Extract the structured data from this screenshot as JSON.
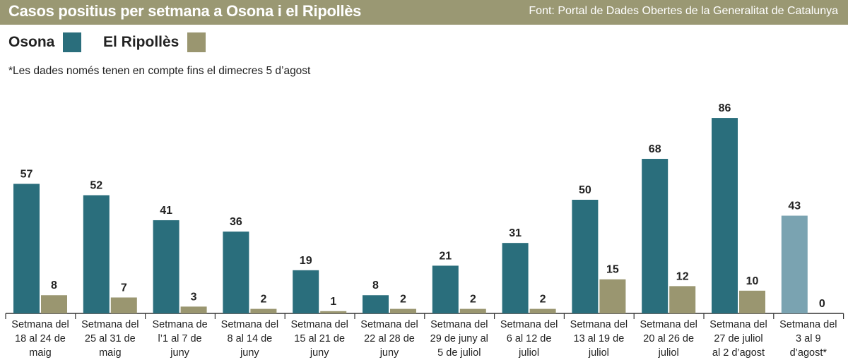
{
  "header": {
    "title": "Casos positius per setmana a Osona i el Ripollès",
    "source": "Font: Portal de Dades Obertes de la Generalitat de Catalunya"
  },
  "note": "*Les dades només tenen en compte fins el dimecres 5 d’agost",
  "colors": {
    "header_bg": "#9a9873",
    "osona": "#2a6e7c",
    "osona_partial": "#7aa3b1",
    "ripolles": "#9a9670",
    "axis": "#333333",
    "text": "#222222"
  },
  "chart_data": {
    "type": "bar",
    "title": "Casos positius per setmana a Osona i el Ripollès",
    "xlabel": "",
    "ylabel": "",
    "ylim": [
      0,
      90
    ],
    "grid": false,
    "legend_position": "top-left",
    "categories": [
      "Setmana del 18 al 24 de maig",
      "Setmana del 25 al 31 de maig",
      "Setmana de l’1 al 7 de juny",
      "Setmana del 8 al 14 de juny",
      "Setmana del 15 al 21 de juny",
      "Setmana del 22 al 28 de juny",
      "Setmana del 29 de juny al 5 de juliol",
      "Setmana del 6 al 12 de juliol",
      "Setmana del 13 al 19 de juliol",
      "Setmana del 20 al 26 de juliol",
      "Setmana del 27 de juliol al 2 d’agost",
      "Setmana del 3 al 9 d’agost*"
    ],
    "category_lines": [
      [
        "Setmana del",
        "18 al 24 de",
        "maig"
      ],
      [
        "Setmana del",
        "25 al 31 de",
        "maig"
      ],
      [
        "Setmana de",
        "l’1 al 7 de",
        "juny"
      ],
      [
        "Setmana del",
        "8 al 14 de",
        "juny"
      ],
      [
        "Setmana del",
        "15 al 21 de",
        "juny"
      ],
      [
        "Setmana del",
        "22 al 28 de",
        "juny"
      ],
      [
        "Setmana del",
        "29 de juny al",
        "5 de juliol"
      ],
      [
        "Setmana del",
        "6 al 12 de",
        "juliol"
      ],
      [
        "Setmana del",
        "13 al 19 de",
        "juliol"
      ],
      [
        "Setmana del",
        "20 al 26 de",
        "juliol"
      ],
      [
        "Setmana del",
        "27 de juliol",
        "al 2 d’agost"
      ],
      [
        "Setmana del",
        "3 al 9",
        "d’agost*"
      ]
    ],
    "series": [
      {
        "name": "Osona",
        "values": [
          57,
          52,
          41,
          36,
          19,
          8,
          21,
          31,
          50,
          68,
          86,
          43
        ]
      },
      {
        "name": "El Ripollès",
        "values": [
          8,
          7,
          3,
          2,
          1,
          2,
          2,
          2,
          15,
          12,
          10,
          0
        ]
      }
    ]
  }
}
